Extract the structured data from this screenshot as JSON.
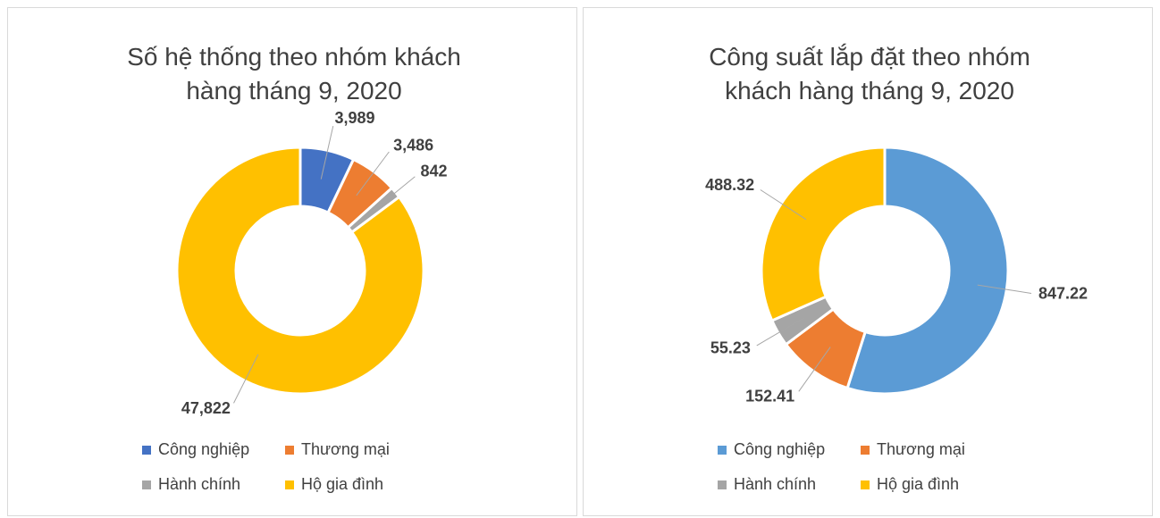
{
  "chart_data": [
    {
      "type": "donut",
      "title": "Số hệ thống theo nhóm khách hàng tháng 9, 2020",
      "categories": [
        "Công nghiệp",
        "Thương mại",
        "Hành chính",
        "Hộ gia đình"
      ],
      "series": [
        {
          "values": [
            3989,
            3486,
            842,
            47822
          ],
          "value_labels": [
            "3,989",
            "3,486",
            "842",
            "47,822"
          ],
          "colors": [
            "#4472c4",
            "#ed7d31",
            "#a5a5a5",
            "#ffc000"
          ]
        }
      ],
      "legend": "bottom"
    },
    {
      "type": "donut",
      "title": "Công suất lắp đặt theo nhóm khách hàng tháng 9, 2020",
      "categories": [
        "Công nghiệp",
        "Thương mại",
        "Hành chính",
        "Hộ gia đình"
      ],
      "series": [
        {
          "values": [
            847.22,
            152.41,
            55.23,
            488.32
          ],
          "colors": [
            "#5b9bd5",
            "#ed7d31",
            "#a5a5a5",
            "#ffc000"
          ]
        }
      ],
      "legend": "bottom"
    }
  ]
}
